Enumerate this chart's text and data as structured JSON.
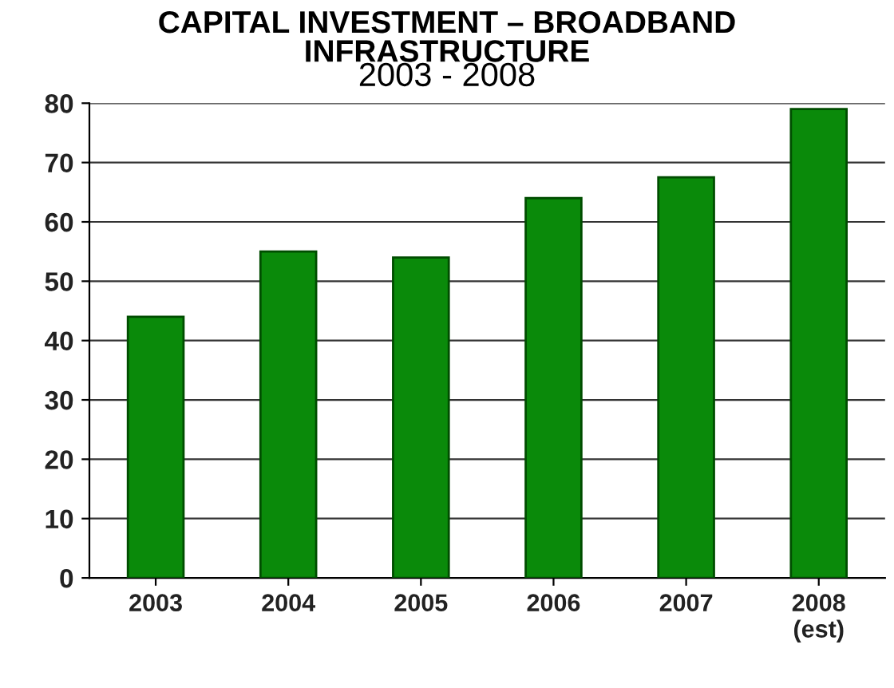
{
  "chart_data": {
    "type": "bar",
    "title": "CAPITAL INVESTMENT – BROADBAND\nINFRASTRUCTURE",
    "subtitle": "2003 - 2008",
    "categories": [
      "2003",
      "2004",
      "2005",
      "2006",
      "2007",
      "2008\n(est)"
    ],
    "values": [
      44,
      55,
      54,
      64,
      67.5,
      79
    ],
    "color": "#0a8a0a",
    "ylim": [
      0,
      80
    ],
    "yticks": [
      0,
      10,
      20,
      30,
      40,
      50,
      60,
      70,
      80
    ],
    "grid": "y"
  }
}
